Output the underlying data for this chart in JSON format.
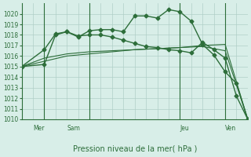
{
  "title": "Pression niveau de la mer( hPa )",
  "bg_color": "#d8eee8",
  "grid_color": "#b0cfc8",
  "line_color": "#2d6e3a",
  "xlim": [
    0,
    20
  ],
  "ylim": [
    1010,
    1021
  ],
  "yticks": [
    1010,
    1011,
    1012,
    1013,
    1014,
    1015,
    1016,
    1017,
    1018,
    1019,
    1020
  ],
  "day_lines": [
    2,
    6,
    14,
    18
  ],
  "day_labels": [
    [
      1,
      "Mer"
    ],
    [
      4,
      "Sam"
    ],
    [
      14,
      "Jeu"
    ],
    [
      18,
      "Ven"
    ]
  ],
  "series1": {
    "x": [
      0,
      2,
      3,
      4,
      5,
      6,
      7,
      8,
      9,
      10,
      11,
      12,
      13,
      14,
      15,
      16,
      17,
      18,
      19,
      20
    ],
    "y": [
      1015.0,
      1015.2,
      1018.0,
      1018.3,
      1017.8,
      1018.4,
      1018.5,
      1018.5,
      1018.3,
      1019.8,
      1019.8,
      1019.6,
      1020.4,
      1020.2,
      1019.3,
      1017.1,
      1016.1,
      1014.5,
      1013.4,
      1010.0
    ]
  },
  "series2": {
    "x": [
      0,
      2,
      3,
      4,
      5,
      6,
      7,
      8,
      9,
      10,
      11,
      12,
      13,
      14,
      15,
      16,
      17,
      18,
      19,
      20
    ],
    "y": [
      1015.0,
      1016.6,
      1018.1,
      1018.3,
      1017.9,
      1018.0,
      1018.0,
      1017.8,
      1017.5,
      1017.2,
      1016.9,
      1016.8,
      1016.6,
      1016.5,
      1016.3,
      1017.3,
      1016.6,
      1015.8,
      1012.2,
      1010.0
    ]
  },
  "series3": {
    "x": [
      0,
      2,
      4,
      6,
      8,
      10,
      12,
      14,
      16,
      18,
      20
    ],
    "y": [
      1015.0,
      1015.5,
      1016.0,
      1016.2,
      1016.4,
      1016.6,
      1016.7,
      1016.8,
      1017.0,
      1017.1,
      1010.0
    ]
  },
  "series4": {
    "x": [
      0,
      2,
      4,
      6,
      8,
      10,
      12,
      14,
      16,
      18,
      20
    ],
    "y": [
      1015.0,
      1015.8,
      1016.2,
      1016.4,
      1016.5,
      1016.6,
      1016.7,
      1016.8,
      1016.9,
      1016.5,
      1010.0
    ]
  }
}
